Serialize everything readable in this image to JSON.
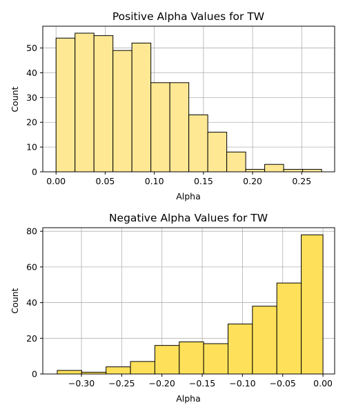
{
  "chart_data": [
    {
      "type": "bar",
      "title": "Positive Alpha Values for TW",
      "xlabel": "Alpha",
      "ylabel": "Count",
      "xlim": [
        -0.0135,
        0.2835
      ],
      "ylim": [
        0,
        58.8
      ],
      "xticks": [
        0.0,
        0.05,
        0.1,
        0.15,
        0.2,
        0.25
      ],
      "xtick_labels": [
        "0.00",
        "0.05",
        "0.10",
        "0.15",
        "0.20",
        "0.25"
      ],
      "yticks": [
        0,
        10,
        20,
        30,
        40,
        50
      ],
      "ytick_labels": [
        "0",
        "10",
        "20",
        "30",
        "40",
        "50"
      ],
      "bin_edges": [
        0.0,
        0.0193,
        0.0386,
        0.0579,
        0.0772,
        0.0965,
        0.1158,
        0.1351,
        0.1544,
        0.1737,
        0.193,
        0.2123,
        0.2316,
        0.2509,
        0.2702
      ],
      "values": [
        54,
        56,
        55,
        49,
        52,
        36,
        36,
        23,
        16,
        8,
        1,
        3,
        1,
        1
      ],
      "bar_color": "#ffe894",
      "grid": "both"
    },
    {
      "type": "bar",
      "title": "Negative Alpha Values for TW",
      "xlabel": "Alpha",
      "ylabel": "Count",
      "xlim": [
        -0.348,
        0.0145
      ],
      "ylim": [
        0,
        82
      ],
      "xticks": [
        -0.3,
        -0.25,
        -0.2,
        -0.15,
        -0.1,
        -0.05,
        0.0
      ],
      "xtick_labels": [
        "−0.30",
        "−0.25",
        "−0.20",
        "−0.15",
        "−0.10",
        "−0.05",
        "0.00"
      ],
      "yticks": [
        0,
        20,
        40,
        60,
        80
      ],
      "ytick_labels": [
        "0",
        "20",
        "40",
        "60",
        "80"
      ],
      "bin_edges": [
        -0.33,
        -0.2997,
        -0.2694,
        -0.2391,
        -0.2088,
        -0.1785,
        -0.1482,
        -0.1179,
        -0.0876,
        -0.0573,
        -0.027,
        0.0
      ],
      "values": [
        2,
        1,
        4,
        7,
        16,
        18,
        17,
        28,
        38,
        51,
        78
      ],
      "bar_color": "#ffe05a",
      "grid": "both"
    }
  ]
}
